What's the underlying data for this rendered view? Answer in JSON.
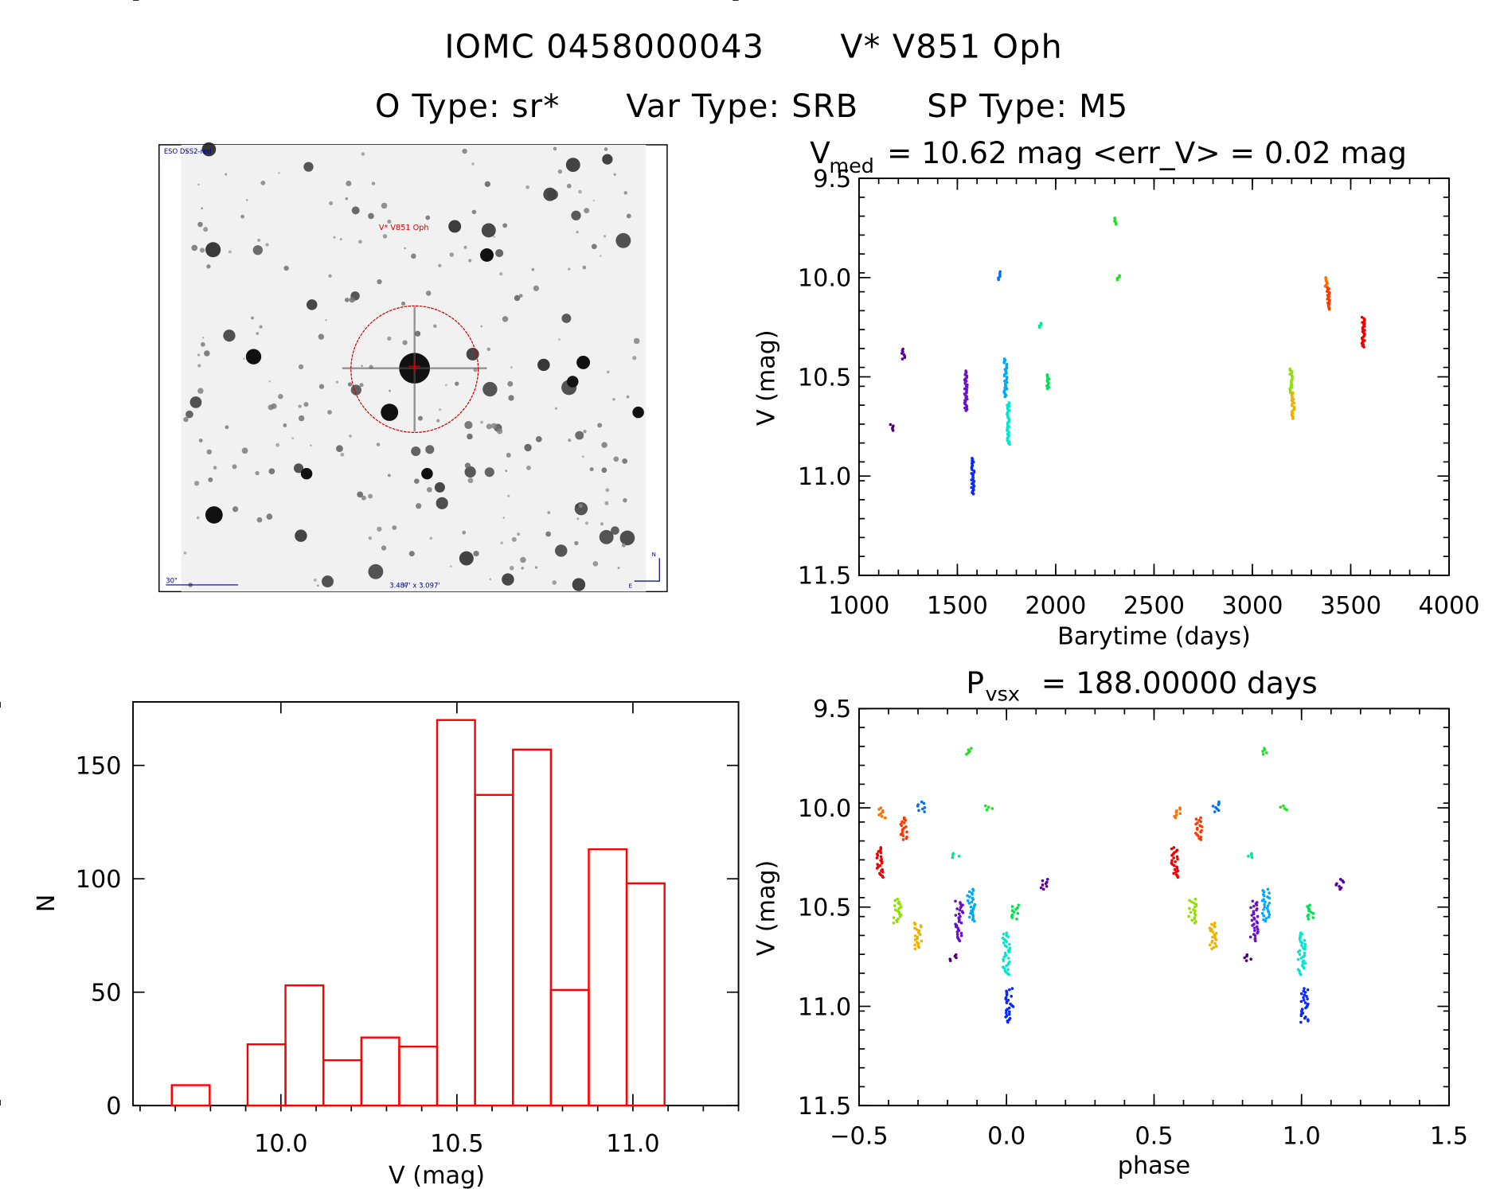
{
  "header": {
    "title_id": "IOMC 0458000043",
    "title_name": "V* V851 Oph",
    "otype": "O Type: sr*",
    "vartype": "Var Type: SRB",
    "sptype": "SP Type: M5"
  },
  "image_panel": {
    "survey_label": "ESO DSS2-red",
    "target_label": "V* V851 Oph",
    "scale_label": "30\"",
    "fov_label": "3.487' x 3.097'",
    "north_label": "N",
    "east_label": "E",
    "marker_color": "#cc0000",
    "annotation_color": "#00008b"
  },
  "colors": {
    "histogram": "#ff0000",
    "clusters": [
      "#4b0070",
      "#5a00a0",
      "#6a10c8",
      "#0828ff",
      "#0070ff",
      "#00a8ff",
      "#00e8d0",
      "#00e890",
      "#00e050",
      "#20e020",
      "#90e000",
      "#f0b000",
      "#ff7000",
      "#ff3800",
      "#f00000"
    ]
  },
  "chart_data": [
    {
      "type": "scatter",
      "title_main": "V",
      "title_sub": "med",
      "title_rest": "= 10.62 mag <err_V> = 0.02 mag",
      "xlabel": "Barytime (days)",
      "ylabel": "V (mag)",
      "xlim": [
        1000,
        4000
      ],
      "ylim": [
        11.5,
        9.5
      ],
      "y_inverted": true,
      "xticks": [
        "1000",
        "1500",
        "2000",
        "2500",
        "3000",
        "3500",
        "4000"
      ],
      "yticks": [
        "9.5",
        "10.0",
        "10.5",
        "11.0",
        "11.5"
      ],
      "clusters": [
        {
          "t": 1167,
          "mag": [
            10.74,
            10.77
          ],
          "color_index": 0
        },
        {
          "t": 1225,
          "mag": [
            10.36,
            10.41
          ],
          "color_index": 1
        },
        {
          "t": 1544,
          "mag": [
            10.47,
            10.67
          ],
          "color_index": 2
        },
        {
          "t": 1578,
          "mag": [
            10.91,
            11.09
          ],
          "color_index": 3
        },
        {
          "t": 1711,
          "mag": [
            9.97,
            10.01
          ],
          "color_index": 4
        },
        {
          "t": 1745,
          "mag": [
            10.41,
            10.6
          ],
          "color_index": 5
        },
        {
          "t": 1760,
          "mag": [
            10.63,
            10.84
          ],
          "color_index": 6
        },
        {
          "t": 1922,
          "mag": [
            10.23,
            10.25
          ],
          "color_index": 7
        },
        {
          "t": 1961,
          "mag": [
            10.49,
            10.56
          ],
          "color_index": 8
        },
        {
          "t": 2304,
          "mag": [
            9.7,
            9.73
          ],
          "color_index": 9
        },
        {
          "t": 2320,
          "mag": [
            9.99,
            10.01
          ],
          "color_index": 9
        },
        {
          "t": 3196,
          "mag": [
            10.46,
            10.58
          ],
          "color_index": 10
        },
        {
          "t": 3206,
          "mag": [
            10.58,
            10.71
          ],
          "color_index": 11
        },
        {
          "t": 3377,
          "mag": [
            10.0,
            10.05
          ],
          "color_index": 12
        },
        {
          "t": 3387,
          "mag": [
            10.05,
            10.16
          ],
          "color_index": 13
        },
        {
          "t": 3564,
          "mag": [
            10.2,
            10.35
          ],
          "color_index": 14
        }
      ]
    },
    {
      "type": "bar",
      "xlabel": "V (mag)",
      "ylabel": "N",
      "xlim": [
        9.58,
        11.3
      ],
      "ylim": [
        0,
        178
      ],
      "xticks": [
        "10.0",
        "10.5",
        "11.0"
      ],
      "yticks": [
        "0",
        "50",
        "100",
        "150"
      ],
      "bin_start": 9.69,
      "bin_width": 0.1077,
      "values": [
        9,
        0,
        27,
        53,
        20,
        30,
        26,
        170,
        137,
        157,
        51,
        113,
        98
      ]
    },
    {
      "type": "scatter",
      "title_main": "P",
      "title_sub": "vsx",
      "title_rest": "= 188.00000 days",
      "xlabel": "phase",
      "ylabel": "V (mag)",
      "xlim": [
        -0.5,
        1.5
      ],
      "ylim": [
        11.5,
        9.5
      ],
      "y_inverted": true,
      "repeat_phase_plus_one": true,
      "xticks": [
        "−0.5",
        "0.0",
        "0.5",
        "1.0",
        "1.5"
      ],
      "yticks": [
        "9.5",
        "10.0",
        "10.5",
        "11.0",
        "11.5"
      ],
      "clusters": [
        {
          "phase": -0.42,
          "mag": [
            10.0,
            10.05
          ],
          "color_index": 12
        },
        {
          "phase": -0.35,
          "mag": [
            10.05,
            10.16
          ],
          "color_index": 13
        },
        {
          "phase": -0.43,
          "mag": [
            10.2,
            10.35
          ],
          "color_index": 14
        },
        {
          "phase": -0.29,
          "mag": [
            9.97,
            10.02
          ],
          "color_index": 4
        },
        {
          "phase": -0.13,
          "mag": [
            9.7,
            9.73
          ],
          "color_index": 9
        },
        {
          "phase": -0.06,
          "mag": [
            9.99,
            10.01
          ],
          "color_index": 9
        },
        {
          "phase": -0.17,
          "mag": [
            10.23,
            10.25
          ],
          "color_index": 7
        },
        {
          "phase": -0.37,
          "mag": [
            10.46,
            10.58
          ],
          "color_index": 10
        },
        {
          "phase": -0.3,
          "mag": [
            10.58,
            10.71
          ],
          "color_index": 11
        },
        {
          "phase": -0.18,
          "mag": [
            10.74,
            10.77
          ],
          "color_index": 0
        },
        {
          "phase": -0.16,
          "mag": [
            10.47,
            10.67
          ],
          "color_index": 2
        },
        {
          "phase": -0.12,
          "mag": [
            10.41,
            10.57
          ],
          "color_index": 5
        },
        {
          "phase": 0.0,
          "mag": [
            10.63,
            10.84
          ],
          "color_index": 6
        },
        {
          "phase": 0.01,
          "mag": [
            10.91,
            11.08
          ],
          "color_index": 3
        },
        {
          "phase": 0.03,
          "mag": [
            10.49,
            10.56
          ],
          "color_index": 8
        },
        {
          "phase": 0.13,
          "mag": [
            10.36,
            10.41
          ],
          "color_index": 1
        }
      ]
    }
  ]
}
